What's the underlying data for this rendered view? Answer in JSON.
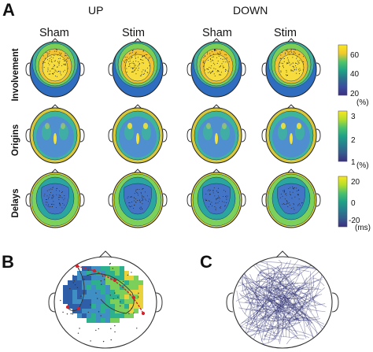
{
  "panels": {
    "A": "A",
    "B": "B",
    "C": "C"
  },
  "groups": [
    "UP",
    "DOWN"
  ],
  "columns": [
    "Sham",
    "Stim",
    "Sham",
    "Stim"
  ],
  "rows": [
    {
      "label": "Involvement",
      "ticks": [
        "60",
        "40",
        "20"
      ],
      "unit": "(%)",
      "colorbar": [
        "#f9e721",
        "#f3c92a",
        "#52c569",
        "#20a486",
        "#2c728e",
        "#3b4d9e",
        "#3b2f80"
      ]
    },
    {
      "label": "Origins",
      "ticks": [
        "3",
        "2",
        "1"
      ],
      "unit": "(%)",
      "colorbar": [
        "#f9e721",
        "#b5de2b",
        "#4ac16d",
        "#1fa187",
        "#277f8e",
        "#365c8d",
        "#3b2f80"
      ]
    },
    {
      "label": "Delays",
      "ticks": [
        "20",
        "0",
        "-20"
      ],
      "unit": "(ms)",
      "colorbar": [
        "#f9e721",
        "#b5de2b",
        "#4ac16d",
        "#1fa187",
        "#277f8e",
        "#365c8d",
        "#3b2f80"
      ]
    }
  ],
  "maps": {
    "involvement": {
      "outer": "#2e6dbf",
      "rings": [
        "#3fae9b",
        "#7ccf55",
        "#f1c232",
        "#f6dc3d"
      ],
      "dots": "#1a1a1a"
    },
    "origins": {
      "base": "#4f8fd0",
      "edge": "#d9c83a",
      "mid": "#3db59a",
      "hot": "#f4e23a"
    },
    "delays": {
      "center": "#4474c6",
      "ring": "#2aa5a0",
      "edge": "#7bd15a",
      "hot": "#e5d73a"
    }
  },
  "panel_b": {
    "path_color": "#d2232a",
    "map_colors": [
      "#2f5ea8",
      "#3f8fc4",
      "#2db08e",
      "#7ad05a",
      "#e9d23a"
    ]
  },
  "panel_c": {
    "line_color": "#2b2c6e"
  }
}
